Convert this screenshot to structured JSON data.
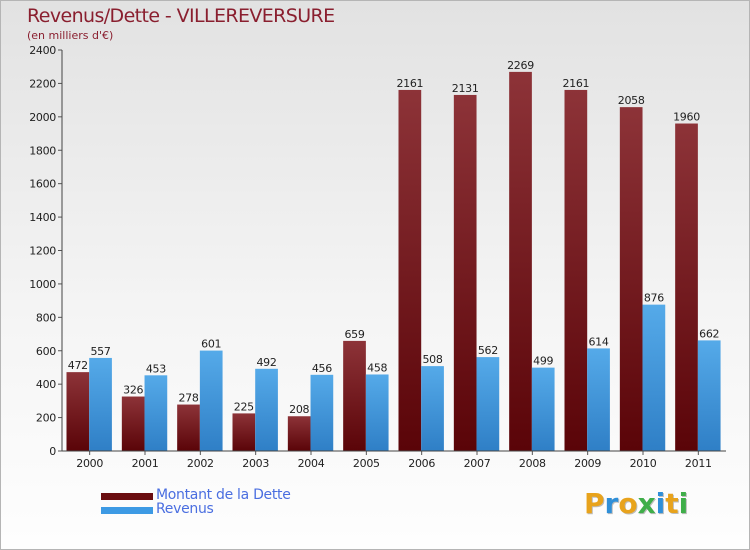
{
  "title": "Revenus/Dette - VILLEREVERSURE",
  "subtitle": "(en milliers d'€)",
  "chart_data": {
    "type": "bar",
    "title": "Revenus/Dette - VILLEREVERSURE",
    "subtitle": "(en milliers d'€)",
    "xlabel": "",
    "ylabel": "",
    "ylim": [
      0,
      2400
    ],
    "ytick_step": 200,
    "grid": false,
    "legend_position": "bottom-left",
    "categories": [
      "2000",
      "2001",
      "2002",
      "2003",
      "2004",
      "2005",
      "2006",
      "2007",
      "2008",
      "2009",
      "2010",
      "2011"
    ],
    "series": [
      {
        "name": "Montant de la Dette",
        "color": "#7a1a1f",
        "values": [
          472,
          326,
          278,
          225,
          208,
          659,
          2161,
          2131,
          2269,
          2161,
          2058,
          1960
        ]
      },
      {
        "name": "Revenus",
        "color": "#4a9ee0",
        "values": [
          557,
          453,
          601,
          492,
          456,
          458,
          508,
          562,
          499,
          614,
          876,
          662
        ]
      }
    ]
  },
  "legend": {
    "items": [
      {
        "label": "Montant de la Dette",
        "color": "#6a0d10"
      },
      {
        "label": "Revenus",
        "color": "#3d9ae4"
      }
    ]
  },
  "logo": {
    "name": "Proxiti",
    "letters": [
      "P",
      "r",
      "o",
      "x",
      "i",
      "t",
      "i"
    ],
    "colors": [
      "#e8a31c",
      "#2f8fd8",
      "#e8a31c",
      "#3fae49",
      "#2f8fd8",
      "#e8a31c",
      "#3fae49"
    ]
  }
}
